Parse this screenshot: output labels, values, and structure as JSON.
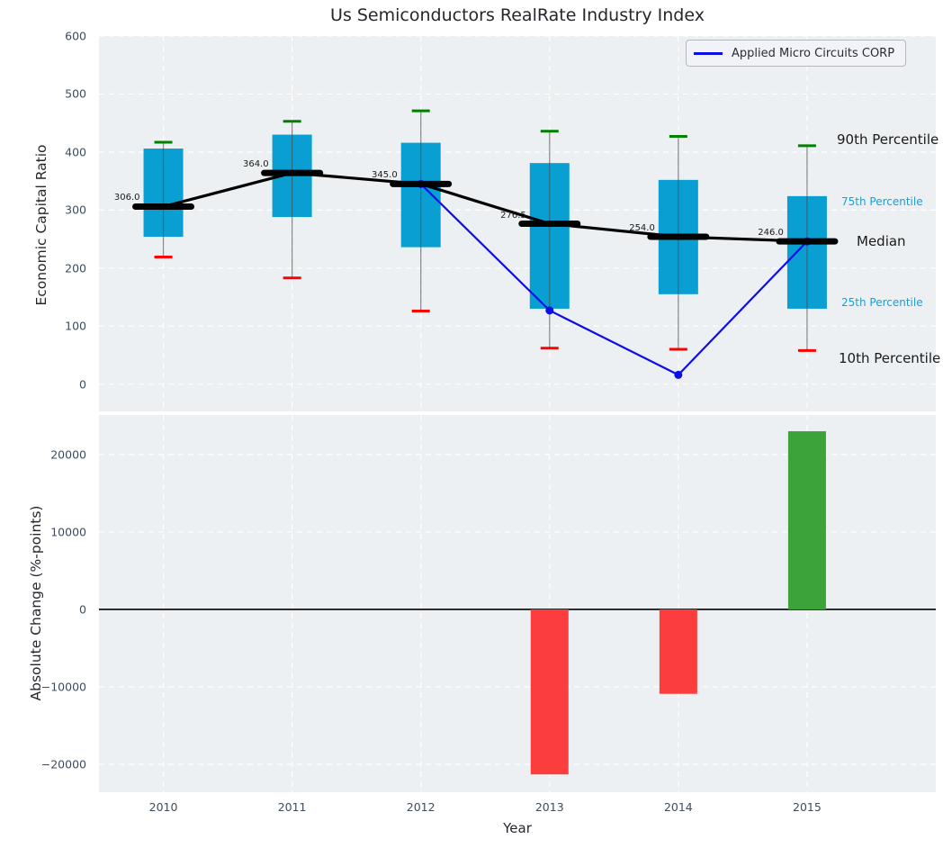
{
  "title": "Us Semiconductors RealRate Industry Index",
  "axes": {
    "top_ylabel": "Economic Capital Ratio",
    "bottom_ylabel": "Absolute Change (%-points)",
    "xlabel": "Year"
  },
  "legend": {
    "label": "Applied Micro Circuits CORP"
  },
  "colors": {
    "axes_bg": "#edf0f2",
    "grid": "#ffffff",
    "box_fill": "#099fd2",
    "whisker": "#4a4a4a",
    "cap_high": "#008000",
    "cap_low": "#ff0000",
    "median": "#000000",
    "overlay_line": "#0d0de8",
    "bar_negative": "#fc3d3d",
    "bar_positive": "#3ba33a",
    "zero_line": "#000000",
    "tick_text": "#3d4c5e",
    "annotation_accent": "#17a0d4",
    "annotation_dark": "#1a1a1a"
  },
  "chart_data": [
    {
      "type": "box",
      "title": "Us Semiconductors RealRate Industry Index",
      "ylabel": "Economic Capital Ratio",
      "categories": [
        "2010",
        "2011",
        "2012",
        "2013",
        "2014",
        "2015"
      ],
      "yticks": [
        600,
        500,
        400,
        300,
        200,
        100,
        0
      ],
      "ylim": [
        -47,
        600
      ],
      "grid": true,
      "legend_position": "upper right",
      "series": {
        "p90": [
          417,
          453,
          471,
          436,
          427,
          411
        ],
        "p75": [
          406,
          430,
          416,
          381,
          352,
          324
        ],
        "median": [
          306,
          364,
          345,
          276.5,
          254,
          246
        ],
        "p25": [
          254,
          288,
          236,
          130,
          155,
          130
        ],
        "p10": [
          219,
          183,
          126,
          62,
          60,
          58
        ]
      },
      "median_labels": [
        "306.0",
        "364.0",
        "345.0",
        "276.5",
        "254.0",
        "246.0"
      ],
      "overlay": {
        "name": "Applied Micro Circuits CORP",
        "categories": [
          "2012",
          "2013",
          "2014",
          "2015"
        ],
        "values": [
          345,
          127,
          16,
          246
        ]
      },
      "annotations": [
        {
          "text": "90th Percentile",
          "value": 422,
          "x": 930,
          "style": "dark"
        },
        {
          "text": "75th Percentile",
          "value": 315,
          "x": 935,
          "style": "accent"
        },
        {
          "text": "Median",
          "value": 247,
          "x": 952,
          "style": "dark"
        },
        {
          "text": "25th Percentile",
          "value": 140,
          "x": 935,
          "style": "accent"
        },
        {
          "text": "10th Percentile",
          "value": 45,
          "x": 932,
          "style": "dark"
        }
      ]
    },
    {
      "type": "bar",
      "ylabel": "Absolute Change (%-points)",
      "xlabel": "Year",
      "categories": [
        "2010",
        "2011",
        "2012",
        "2013",
        "2014",
        "2015"
      ],
      "values": [
        null,
        null,
        null,
        -21300,
        -10900,
        23000
      ],
      "yticks": [
        20000,
        10000,
        0,
        -10000,
        -20000
      ],
      "ylim": [
        -23600,
        25100
      ],
      "grid": true
    }
  ]
}
